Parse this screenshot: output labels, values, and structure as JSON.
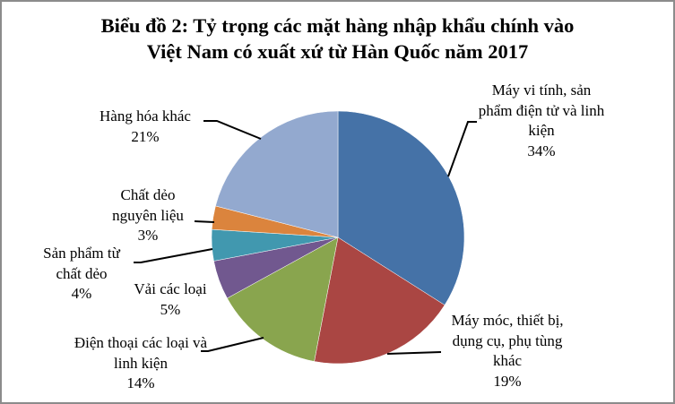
{
  "chart_data": {
    "type": "pie",
    "title_lines": [
      "Biểu đồ 2: Tỷ trọng các mặt hàng nhập khẩu chính vào",
      "Việt Nam có xuất xứ từ Hàn Quốc năm 2017"
    ],
    "categories": [
      "Máy vi tính, sản phẩm điện tử và linh kiện",
      "Máy móc, thiết bị, dụng cụ, phụ tùng khác",
      "Điện thoại các loại và linh kiện",
      "Vải các loại",
      "Sản phẩm từ chất dẻo",
      "Chất dẻo nguyên liệu",
      "Hàng hóa khác"
    ],
    "values": [
      34,
      19,
      14,
      5,
      4,
      3,
      21
    ],
    "value_labels": [
      "34%",
      "19%",
      "14%",
      "5%",
      "4%",
      "3%",
      "21%"
    ],
    "unit": "%",
    "start_angle": "12 o'clock",
    "direction": "clockwise",
    "colors": [
      "#4572a7",
      "#aa4643",
      "#89a54e",
      "#71588f",
      "#4198af",
      "#db843d",
      "#93a9cf"
    ],
    "legend": "none (data labels with leader lines)"
  }
}
